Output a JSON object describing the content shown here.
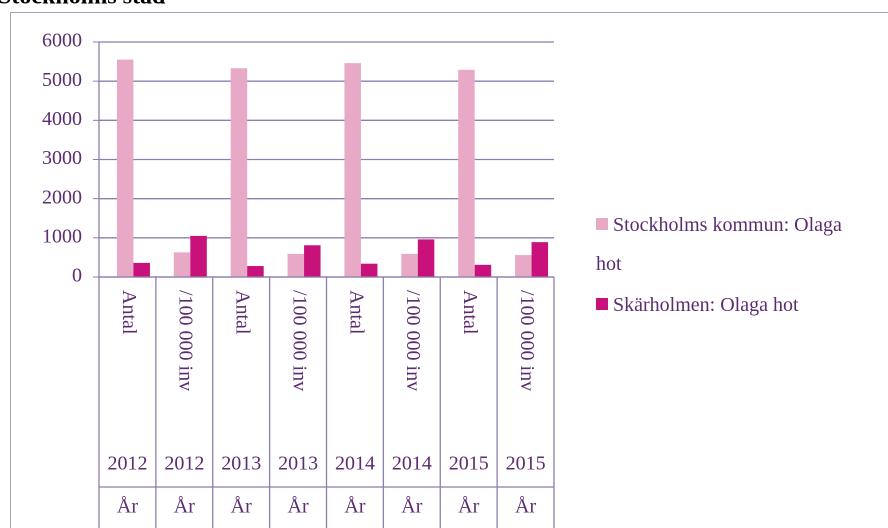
{
  "chart_data": {
    "type": "bar",
    "title": "Stockholms stad",
    "categories": [
      "Antal",
      "/100 000 inv",
      "Antal",
      "/100 000 inv",
      "Antal",
      "/100 000 inv",
      "Antal",
      "/100 000 inv"
    ],
    "category_years": [
      "2012",
      "2012",
      "2013",
      "2013",
      "2014",
      "2014",
      "2015",
      "2015"
    ],
    "category_groups": [
      "År",
      "År",
      "År",
      "År",
      "År",
      "År",
      "År",
      "År"
    ],
    "series": [
      {
        "name": "Stockholms kommun: Olaga hot",
        "color": "#e8a9c6",
        "values": [
          5550,
          630,
          5330,
          590,
          5460,
          590,
          5290,
          560
        ]
      },
      {
        "name": "Skärholmen: Olaga hot",
        "color": "#c8117b",
        "values": [
          360,
          1050,
          280,
          810,
          340,
          960,
          310,
          890
        ]
      }
    ],
    "ylim": [
      0,
      6000
    ],
    "yticks": [
      0,
      1000,
      2000,
      3000,
      4000,
      5000,
      6000
    ],
    "grid": true,
    "legend": "right"
  }
}
